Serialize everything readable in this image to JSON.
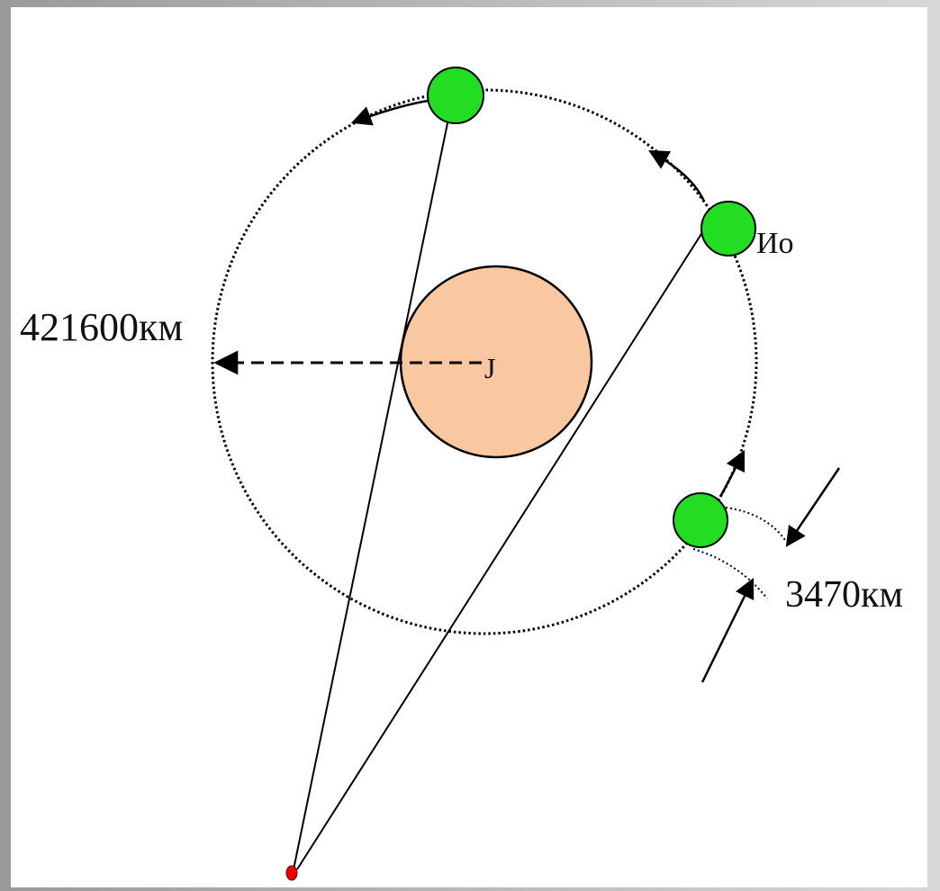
{
  "labels": {
    "orbit_radius": "421600км",
    "planet": "J",
    "moon": "Ио",
    "moon_diameter": "3470км"
  }
}
